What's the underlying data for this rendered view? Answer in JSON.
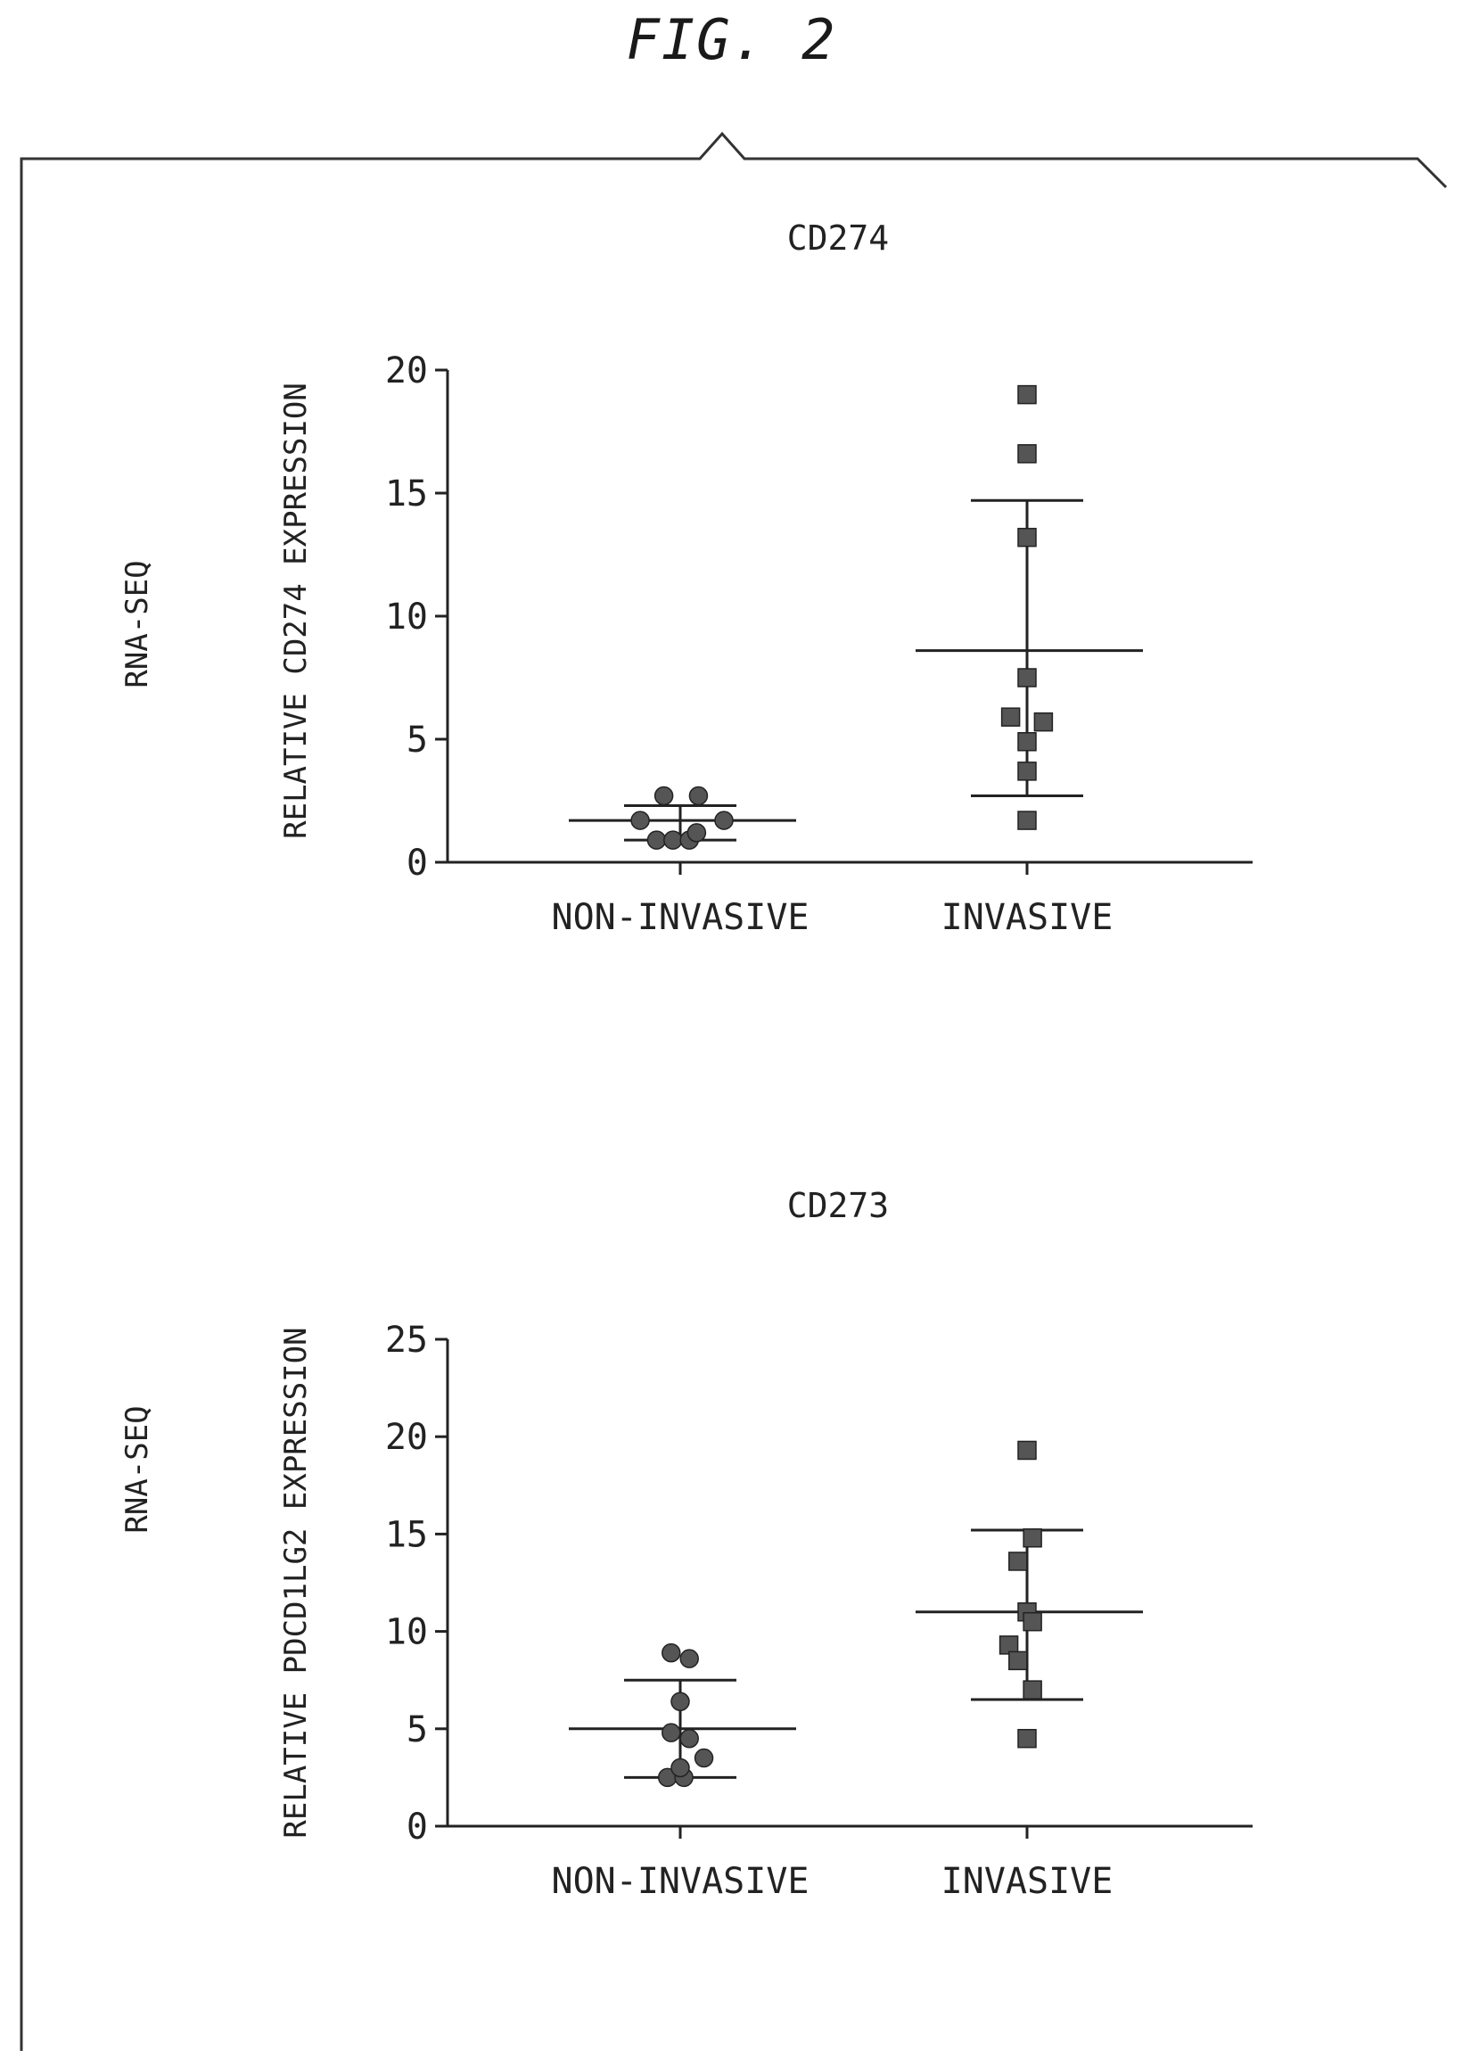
{
  "figure_title": "FIG. 2",
  "colors": {
    "ink": "#222222",
    "marker": "#555555"
  },
  "chart_data": [
    {
      "type": "scatter",
      "title": "CD274",
      "side_label": "RNA-SEQ",
      "ylabel": "RELATIVE CD274 EXPRESSION",
      "categories": [
        "NON-INVASIVE",
        "INVASIVE"
      ],
      "ylim": [
        0,
        20
      ],
      "yticks": [
        "0",
        "5",
        "10",
        "15",
        "20"
      ],
      "yticks_values": [
        0,
        5,
        10,
        15,
        20
      ],
      "grid": false,
      "series": [
        {
          "marker": "circle",
          "category_index": 0,
          "points": [
            {
              "x": -0.22,
              "y": 1.7
            },
            {
              "x": -0.09,
              "y": 2.7
            },
            {
              "x": 0.1,
              "y": 2.7
            },
            {
              "x": 0.24,
              "y": 1.7
            },
            {
              "x": -0.13,
              "y": 0.9
            },
            {
              "x": -0.04,
              "y": 0.9
            },
            {
              "x": 0.05,
              "y": 0.9
            },
            {
              "x": 0.09,
              "y": 1.2
            }
          ],
          "mean": 1.7,
          "sd_low": 0.9,
          "sd_high": 2.3
        },
        {
          "marker": "square",
          "category_index": 1,
          "points": [
            {
              "x": 0.0,
              "y": 19.0
            },
            {
              "x": 0.0,
              "y": 16.6
            },
            {
              "x": 0.0,
              "y": 13.2
            },
            {
              "x": 0.0,
              "y": 7.5
            },
            {
              "x": -0.09,
              "y": 5.9
            },
            {
              "x": 0.09,
              "y": 5.7
            },
            {
              "x": 0.0,
              "y": 4.9
            },
            {
              "x": 0.0,
              "y": 3.7
            },
            {
              "x": 0.0,
              "y": 1.7
            }
          ],
          "mean": 8.6,
          "sd_low": 2.7,
          "sd_high": 14.7
        }
      ]
    },
    {
      "type": "scatter",
      "title": "CD273",
      "side_label": "RNA-SEQ",
      "ylabel": "RELATIVE PDCD1LG2 EXPRESSION",
      "categories": [
        "NON-INVASIVE",
        "INVASIVE"
      ],
      "ylim": [
        0,
        25
      ],
      "yticks": [
        "0",
        "5",
        "10",
        "15",
        "20",
        "25"
      ],
      "yticks_values": [
        0,
        5,
        10,
        15,
        20,
        25
      ],
      "grid": false,
      "series": [
        {
          "marker": "circle",
          "category_index": 0,
          "points": [
            {
              "x": -0.05,
              "y": 8.9
            },
            {
              "x": 0.05,
              "y": 8.6
            },
            {
              "x": 0.0,
              "y": 6.4
            },
            {
              "x": -0.05,
              "y": 4.8
            },
            {
              "x": 0.05,
              "y": 4.5
            },
            {
              "x": 0.13,
              "y": 3.5
            },
            {
              "x": -0.07,
              "y": 2.5
            },
            {
              "x": 0.02,
              "y": 2.5
            },
            {
              "x": 0.0,
              "y": 3.0
            }
          ],
          "mean": 5.0,
          "sd_low": 2.5,
          "sd_high": 7.5
        },
        {
          "marker": "square",
          "category_index": 1,
          "points": [
            {
              "x": 0.0,
              "y": 19.3
            },
            {
              "x": 0.03,
              "y": 14.8
            },
            {
              "x": -0.05,
              "y": 13.6
            },
            {
              "x": 0.0,
              "y": 11.0
            },
            {
              "x": 0.03,
              "y": 10.5
            },
            {
              "x": -0.1,
              "y": 9.3
            },
            {
              "x": -0.05,
              "y": 8.5
            },
            {
              "x": 0.03,
              "y": 7.0
            },
            {
              "x": 0.0,
              "y": 4.5
            }
          ],
          "mean": 11.0,
          "sd_low": 6.5,
          "sd_high": 15.2
        }
      ]
    }
  ]
}
